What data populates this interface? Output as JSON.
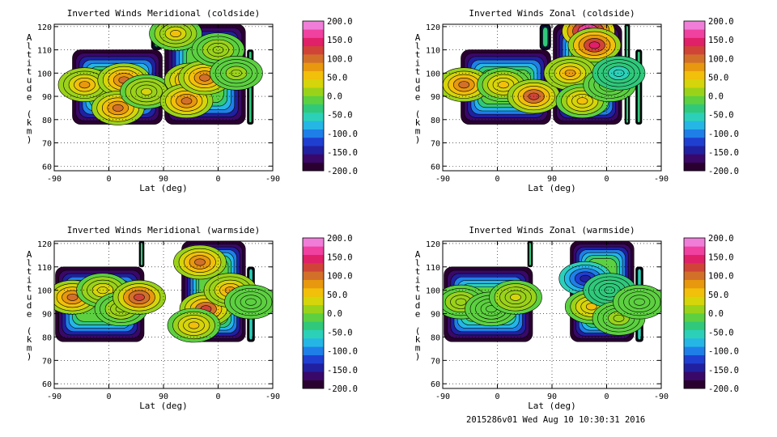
{
  "footer": "2015286v01 Wed Aug 10 10:30:31 2016",
  "colormap": [
    "#2a0030",
    "#3a0868",
    "#2020a0",
    "#1f3fd0",
    "#1f7fe8",
    "#25b6e6",
    "#2cd0b8",
    "#30c87a",
    "#5cd040",
    "#9ad21a",
    "#d6d40a",
    "#f2bf0a",
    "#e8980e",
    "#d2702a",
    "#d04438",
    "#e02068",
    "#f040a0",
    "#f07ed8"
  ],
  "chart_data": [
    {
      "type": "heatmap",
      "title": "Inverted Winds Meridional (coldside)",
      "xlabel": "Lat (deg)",
      "ylabel": "Altitude (km)",
      "xticks": [
        "-90",
        "0",
        "90",
        "0",
        "-90"
      ],
      "yticks": [
        "60",
        "70",
        "80",
        "90",
        "100",
        "110",
        "120"
      ],
      "ylim": [
        58,
        121
      ],
      "colorbar": {
        "min": -200,
        "max": 200,
        "ticks": [
          "200.0",
          "150.0",
          "100.0",
          "50.0",
          "0.0",
          "-50.0",
          "-100.0",
          "-150.0",
          "-200.0"
        ]
      },
      "grid": true,
      "blocks": [
        {
          "lat": [
            -60,
            88
          ],
          "alt": [
            78,
            110
          ]
        },
        {
          "lat": [
            70,
            88
          ],
          "alt": [
            110,
            121
          ]
        },
        {
          "lat": [
            92,
            225
          ],
          "alt": [
            78,
            121
          ]
        },
        {
          "lat": [
            228,
            238
          ],
          "alt": [
            78,
            110
          ]
        }
      ],
      "fields": [
        {
          "lat": -40,
          "alt": 95,
          "value": 80
        },
        {
          "lat": 25,
          "alt": 97,
          "value": 100
        },
        {
          "lat": 15,
          "alt": 85,
          "value": 90
        },
        {
          "lat": 62,
          "alt": 92,
          "value": 30
        },
        {
          "lat": 135,
          "alt": 97,
          "value": 120
        },
        {
          "lat": 128,
          "alt": 88,
          "value": 110
        },
        {
          "lat": 158,
          "alt": 98,
          "value": 100
        },
        {
          "lat": 110,
          "alt": 117,
          "value": 50
        },
        {
          "lat": 180,
          "alt": 110,
          "value": 20
        },
        {
          "lat": 210,
          "alt": 100,
          "value": 10
        }
      ]
    },
    {
      "type": "heatmap",
      "title": "Inverted Winds Zonal (coldside)",
      "xlabel": "Lat (deg)",
      "ylabel": "Altitude (km)",
      "xticks": [
        "-90",
        "0",
        "90",
        "0",
        "-90"
      ],
      "yticks": [
        "60",
        "70",
        "80",
        "90",
        "100",
        "110",
        "120"
      ],
      "ylim": [
        58,
        121
      ],
      "colorbar": {
        "min": -200,
        "max": 200,
        "ticks": [
          "200.0",
          "150.0",
          "100.0",
          "50.0",
          "0.0",
          "-50.0",
          "-100.0",
          "-150.0",
          "-200.0"
        ]
      },
      "grid": true,
      "blocks": [
        {
          "lat": [
            -60,
            88
          ],
          "alt": [
            78,
            110
          ]
        },
        {
          "lat": [
            70,
            88
          ],
          "alt": [
            110,
            121
          ]
        },
        {
          "lat": [
            92,
            205
          ],
          "alt": [
            78,
            121
          ]
        },
        {
          "lat": [
            210,
            218
          ],
          "alt": [
            78,
            121
          ]
        },
        {
          "lat": [
            228,
            238
          ],
          "alt": [
            78,
            110
          ]
        }
      ],
      "fields": [
        {
          "lat": -55,
          "alt": 95,
          "value": 100
        },
        {
          "lat": 10,
          "alt": 95,
          "value": 60
        },
        {
          "lat": 60,
          "alt": 90,
          "value": 120
        },
        {
          "lat": 150,
          "alt": 118,
          "value": 200
        },
        {
          "lat": 160,
          "alt": 112,
          "value": 150
        },
        {
          "lat": 120,
          "alt": 100,
          "value": 80
        },
        {
          "lat": 140,
          "alt": 88,
          "value": 60
        },
        {
          "lat": 185,
          "alt": 95,
          "value": -20
        },
        {
          "lat": 200,
          "alt": 100,
          "value": -60
        }
      ]
    },
    {
      "type": "heatmap",
      "title": "Inverted Winds Meridional (warmside)",
      "xlabel": "Lat (deg)",
      "ylabel": "Altitude (km)",
      "xticks": [
        "-90",
        "0",
        "90",
        "0",
        "-90"
      ],
      "yticks": [
        "60",
        "70",
        "80",
        "90",
        "100",
        "110",
        "120"
      ],
      "ylim": [
        58,
        121
      ],
      "colorbar": {
        "min": -200,
        "max": 200,
        "ticks": [
          "200.0",
          "150.0",
          "100.0",
          "50.0",
          "0.0",
          "-50.0",
          "-100.0",
          "-150.0",
          "-200.0"
        ]
      },
      "grid": true,
      "blocks": [
        {
          "lat": [
            -88,
            58
          ],
          "alt": [
            78,
            110
          ]
        },
        {
          "lat": [
            50,
            58
          ],
          "alt": [
            110,
            121
          ]
        },
        {
          "lat": [
            120,
            225
          ],
          "alt": [
            78,
            121
          ]
        },
        {
          "lat": [
            228,
            240
          ],
          "alt": [
            78,
            110
          ]
        }
      ],
      "fields": [
        {
          "lat": -60,
          "alt": 97,
          "value": 100
        },
        {
          "lat": -10,
          "alt": 100,
          "value": 40
        },
        {
          "lat": 20,
          "alt": 92,
          "value": 20
        },
        {
          "lat": 50,
          "alt": 97,
          "value": 130
        },
        {
          "lat": 150,
          "alt": 112,
          "value": 110
        },
        {
          "lat": 160,
          "alt": 92,
          "value": 120
        },
        {
          "lat": 200,
          "alt": 100,
          "value": 80
        },
        {
          "lat": 140,
          "alt": 85,
          "value": 60
        },
        {
          "lat": 234,
          "alt": 95,
          "value": -10
        }
      ]
    },
    {
      "type": "heatmap",
      "title": "Inverted Winds Zonal (warmside)",
      "xlabel": "Lat (deg)",
      "ylabel": "Altitude (km)",
      "xticks": [
        "-90",
        "0",
        "90",
        "0",
        "-90"
      ],
      "yticks": [
        "60",
        "70",
        "80",
        "90",
        "100",
        "110",
        "120"
      ],
      "ylim": [
        58,
        121
      ],
      "colorbar": {
        "min": -200,
        "max": 200,
        "ticks": [
          "200.0",
          "150.0",
          "100.0",
          "50.0",
          "0.0",
          "-50.0",
          "-100.0",
          "-150.0",
          "-200.0"
        ]
      },
      "grid": true,
      "blocks": [
        {
          "lat": [
            -88,
            58
          ],
          "alt": [
            78,
            110
          ]
        },
        {
          "lat": [
            50,
            58
          ],
          "alt": [
            110,
            121
          ]
        },
        {
          "lat": [
            120,
            225
          ],
          "alt": [
            78,
            121
          ]
        },
        {
          "lat": [
            228,
            240
          ],
          "alt": [
            78,
            110
          ]
        }
      ],
      "fields": [
        {
          "lat": -60,
          "alt": 95,
          "value": 20
        },
        {
          "lat": -10,
          "alt": 92,
          "value": -10
        },
        {
          "lat": 30,
          "alt": 97,
          "value": 30
        },
        {
          "lat": 145,
          "alt": 105,
          "value": -150
        },
        {
          "lat": 155,
          "alt": 93,
          "value": 60
        },
        {
          "lat": 185,
          "alt": 100,
          "value": -40
        },
        {
          "lat": 200,
          "alt": 88,
          "value": 10
        },
        {
          "lat": 234,
          "alt": 95,
          "value": -20
        }
      ]
    }
  ]
}
